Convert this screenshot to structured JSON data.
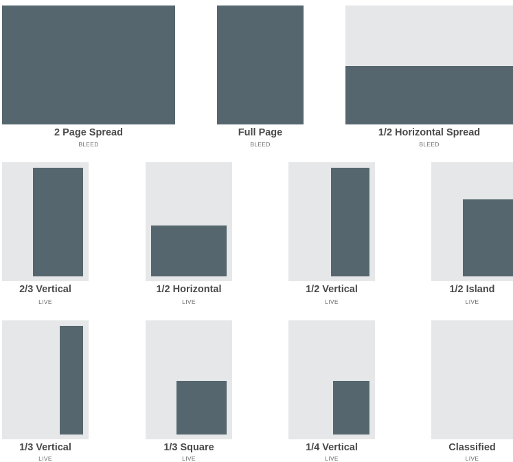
{
  "ad_sizes": [
    {
      "id": "two-page-spread",
      "title": "2 Page Spread",
      "type": "BLEED"
    },
    {
      "id": "full-page",
      "title": "Full Page",
      "type": "BLEED"
    },
    {
      "id": "half-horizontal-spread",
      "title": "1/2 Horizontal Spread",
      "type": "BLEED"
    },
    {
      "id": "two-thirds-vertical",
      "title": "2/3 Vertical",
      "type": "LIVE"
    },
    {
      "id": "half-horizontal",
      "title": "1/2 Horizontal",
      "type": "LIVE"
    },
    {
      "id": "half-vertical",
      "title": "1/2 Vertical",
      "type": "LIVE"
    },
    {
      "id": "half-island",
      "title": "1/2 Island",
      "type": "LIVE"
    },
    {
      "id": "third-vertical",
      "title": "1/3 Vertical",
      "type": "LIVE"
    },
    {
      "id": "third-square",
      "title": "1/3 Square",
      "type": "LIVE"
    },
    {
      "id": "quarter-vertical",
      "title": "1/4 Vertical",
      "type": "LIVE"
    },
    {
      "id": "classified",
      "title": "Classified",
      "type": "LIVE"
    }
  ],
  "colors": {
    "page_background": "#e6e7e8",
    "ad_fill": "#55666e",
    "title_text": "#4a4a4a",
    "subtitle_text": "#6a6a6a"
  }
}
